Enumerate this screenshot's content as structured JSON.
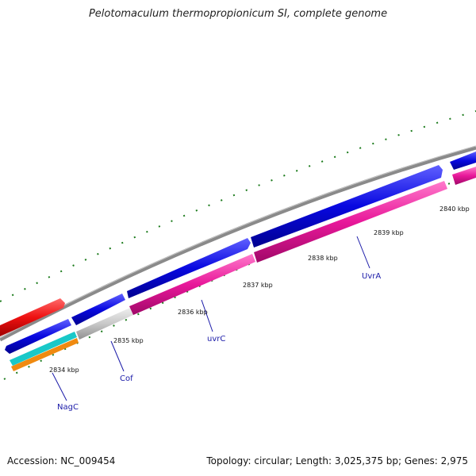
{
  "title": "Pelotomaculum thermopropionicum SI, complete genome",
  "accession": "Accession: NC_009454",
  "summary": "Topology: circular; Length: 3,025,375 bp; Genes: 2,975",
  "scale_labels": [
    "2834 kbp",
    "2835 kbp",
    "2836 kbp",
    "2837 kbp",
    "2838 kbp",
    "2839 kbp",
    "2840 kbp"
  ],
  "gene_labels": [
    "NagC",
    "Cof",
    "uvrC",
    "UvrA"
  ],
  "colors": {
    "backbone": "#8a8a8a",
    "forward_strand": "#0a0ae6",
    "reverse_strand": "#e8189a",
    "highlight": "#ee1111",
    "cof_gene": "#c8c8c8",
    "nagc_cyan": "#19c8c8",
    "nagc_orange": "#f08a10",
    "ticks": "#1a7a1a",
    "label_lines": "#1a1aa8"
  }
}
